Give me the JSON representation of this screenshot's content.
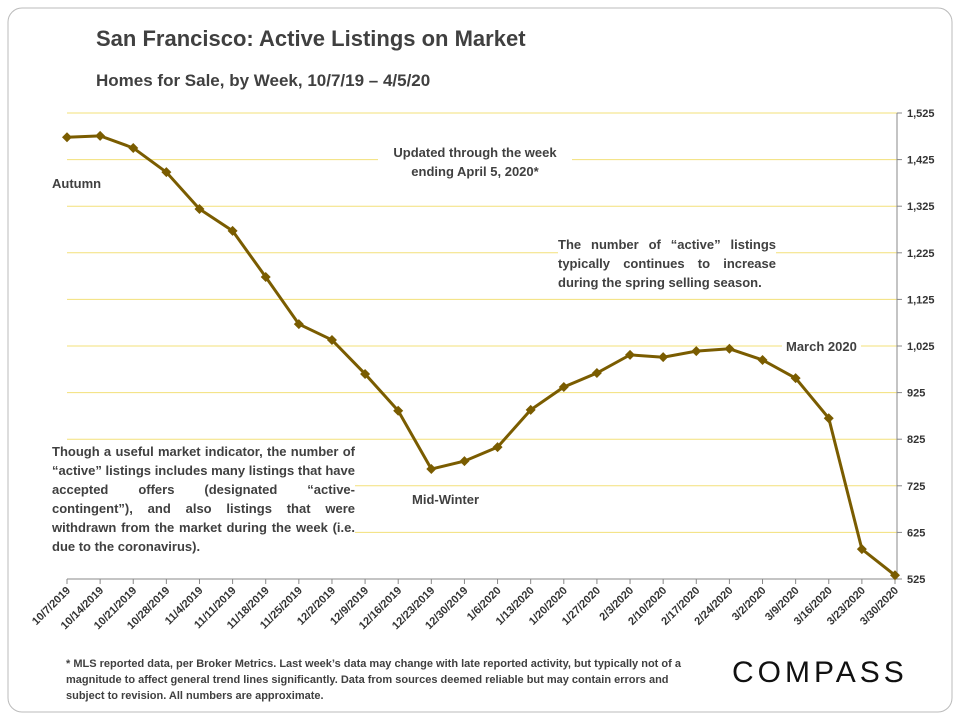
{
  "chart_data": {
    "type": "line",
    "title": "San Francisco: Active Listings on Market",
    "subtitle": "Homes for Sale, by Week, 10/7/19 – 4/5/20",
    "categories": [
      "10/7/2019",
      "10/14/2019",
      "10/21/2019",
      "10/28/2019",
      "11/4/2019",
      "11/11/2019",
      "11/18/2019",
      "11/25/2019",
      "12/2/2019",
      "12/9/2019",
      "12/16/2019",
      "12/23/2019",
      "12/30/2019",
      "1/6/2020",
      "1/13/2020",
      "1/20/2020",
      "1/27/2020",
      "2/3/2020",
      "2/10/2020",
      "2/17/2020",
      "2/24/2020",
      "3/2/2020",
      "3/9/2020",
      "3/16/2020",
      "3/23/2020",
      "3/30/2020"
    ],
    "values": [
      1473,
      1476,
      1450,
      1398,
      1319,
      1272,
      1173,
      1072,
      1038,
      965,
      886,
      761,
      778,
      808,
      888,
      937,
      967,
      1006,
      1001,
      1014,
      1019,
      995,
      956,
      870,
      589,
      533
    ],
    "color": "#7a5c00",
    "grid_color": "#f3e07a",
    "ylim": [
      525,
      1525
    ],
    "yticks": [
      {
        "value": 525,
        "label": "525"
      },
      {
        "value": 625,
        "label": "625"
      },
      {
        "value": 725,
        "label": "725"
      },
      {
        "value": 825,
        "label": "825"
      },
      {
        "value": 925,
        "label": "925"
      },
      {
        "value": 1025,
        "label": "1,025"
      },
      {
        "value": 1125,
        "label": "1,125"
      },
      {
        "value": 1225,
        "label": "1,225"
      },
      {
        "value": 1325,
        "label": "1,325"
      },
      {
        "value": 1425,
        "label": "1,425"
      },
      {
        "value": 1525,
        "label": "1,525"
      }
    ],
    "grid": true,
    "annotations": [
      "Updated through the week ending April 5, 2020*",
      "Autumn",
      "The number of “active” listings typically continues to increase during the spring selling season.",
      "March 2020",
      "Mid-Winter",
      "Though a useful market indicator, the number of “active” listings includes many listings that have accepted offers (designated “active-contingent”), and also listings that were withdrawn from the market during the week (i.e. due to the coronavirus)."
    ]
  },
  "footnote": "* MLS reported data, per Broker Metrics. Last week’s data may change with late reported activity, but typically not of a magnitude to affect general trend lines significantly. Data from sources deemed reliable but may contain errors and subject to revision. All numbers are approximate.",
  "logo": "COMPASS"
}
